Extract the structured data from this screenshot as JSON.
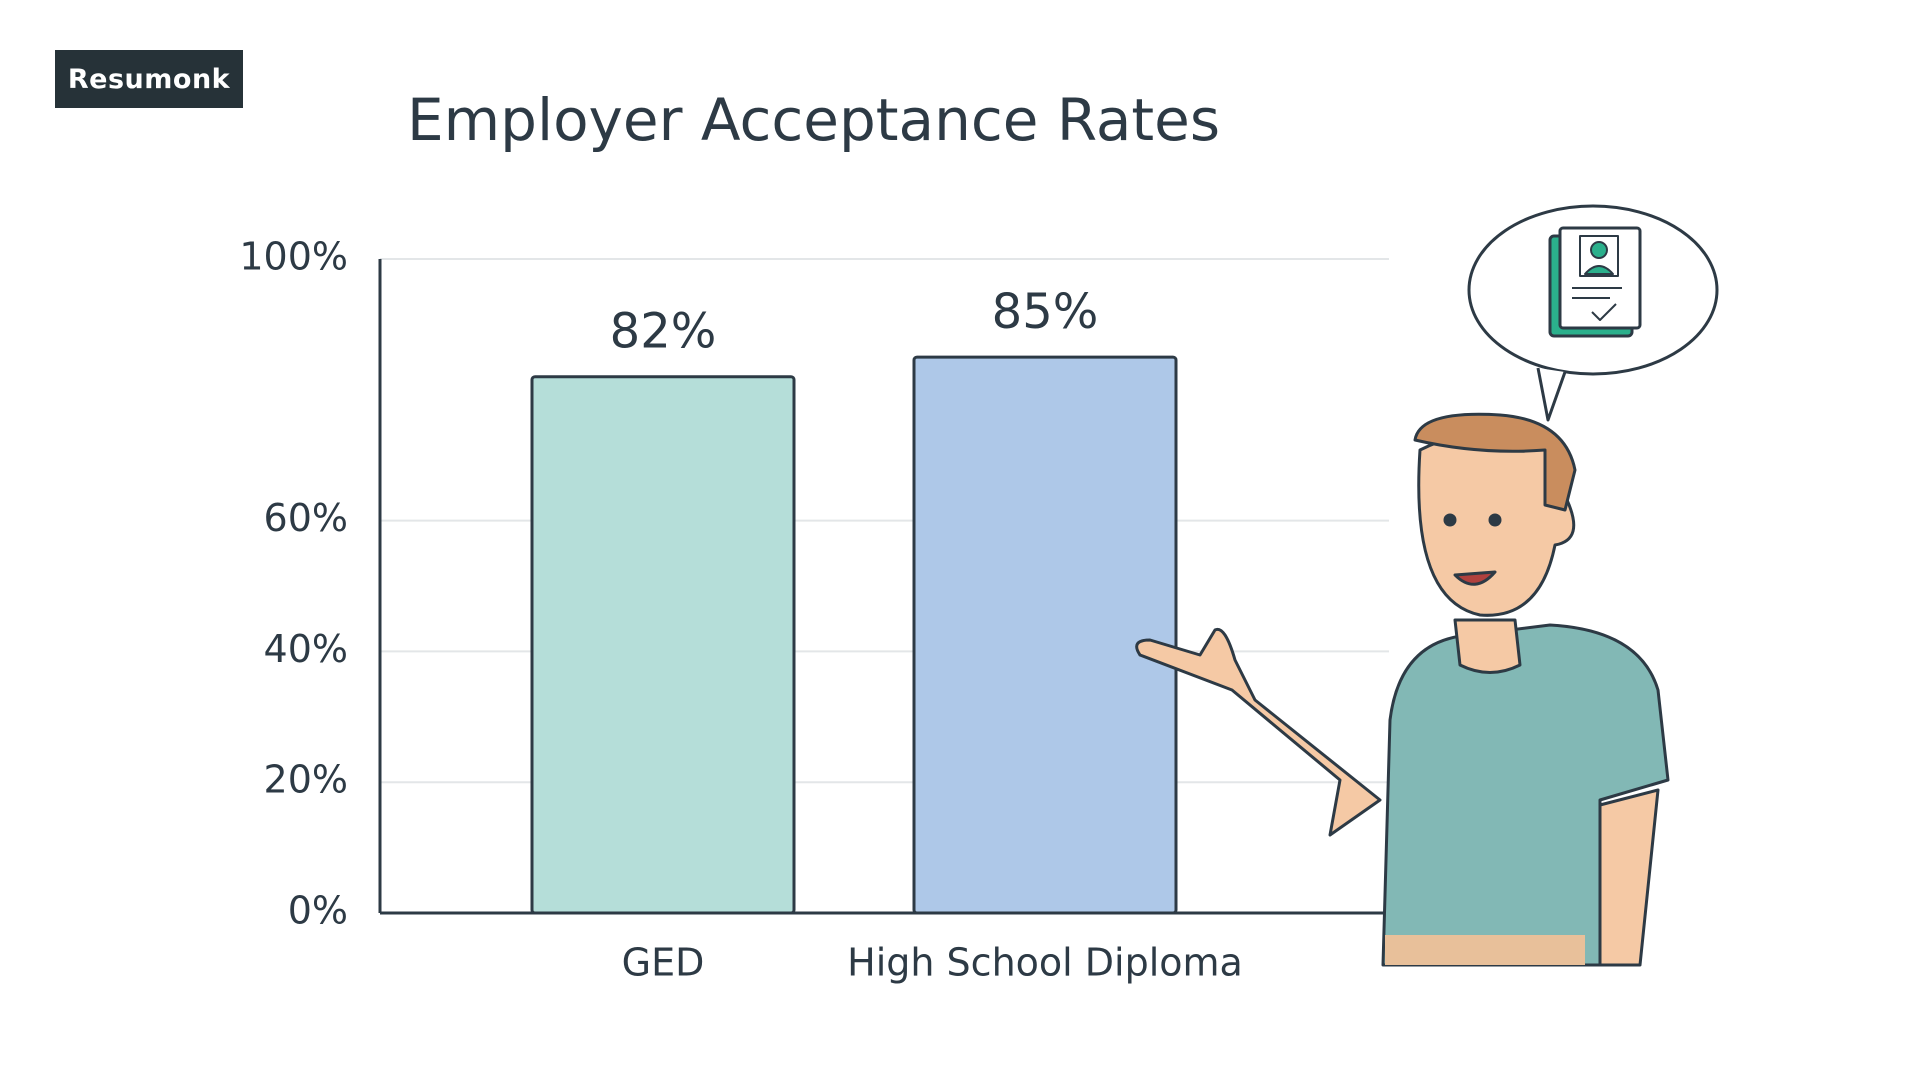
{
  "brand": "Resumonk",
  "chart_data": {
    "type": "bar",
    "title": "Employer Acceptance Rates",
    "categories": [
      "GED",
      "High School Diploma"
    ],
    "values": [
      82,
      85
    ],
    "value_labels": [
      "82%",
      "85%"
    ],
    "colors": [
      "#b5ded9",
      "#aec8e8"
    ],
    "ylim": [
      0,
      100
    ],
    "yticks": [
      {
        "value": 0,
        "label": "0%"
      },
      {
        "value": 20,
        "label": "20%"
      },
      {
        "value": 40,
        "label": "40%"
      },
      {
        "value": 60,
        "label": "60%"
      },
      {
        "value": 100,
        "label": "100%"
      }
    ],
    "grid": true
  }
}
